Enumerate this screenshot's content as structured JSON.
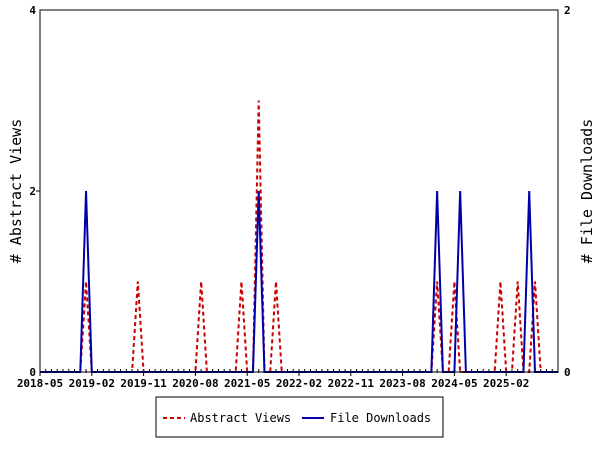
{
  "chart_data": {
    "type": "line",
    "x_tick_labels": [
      "2018-05",
      "2019-02",
      "2019-11",
      "2020-08",
      "2021-05",
      "2022-02",
      "2022-11",
      "2023-08",
      "2024-05",
      "2025-02"
    ],
    "y_left_label": "# Abstract Views",
    "y_right_label": "# File Downloads",
    "y_left_ticks": [
      "0",
      "2",
      "4"
    ],
    "y_right_ticks": [
      "0",
      "2"
    ],
    "y_left_range": [
      0,
      4
    ],
    "y_right_range": [
      0,
      2
    ],
    "legend_position": "bottom-center",
    "series": [
      {
        "name": "Abstract Views",
        "axis": "left",
        "color": "#cc0000",
        "style": "dashed",
        "points": [
          [
            "2019-01",
            1
          ],
          [
            "2019-10",
            1
          ],
          [
            "2020-09",
            1
          ],
          [
            "2021-04",
            1
          ],
          [
            "2021-07",
            3
          ],
          [
            "2021-10",
            1
          ],
          [
            "2024-02",
            1
          ],
          [
            "2024-05",
            1
          ],
          [
            "2025-01",
            1
          ],
          [
            "2025-04",
            1
          ],
          [
            "2025-07",
            1
          ]
        ]
      },
      {
        "name": "File Downloads",
        "axis": "right",
        "color": "#0000aa",
        "style": "solid",
        "points": [
          [
            "2019-01",
            1
          ],
          [
            "2021-07",
            1
          ],
          [
            "2024-02",
            1
          ],
          [
            "2024-06",
            1
          ],
          [
            "2025-06",
            1
          ]
        ]
      }
    ]
  }
}
